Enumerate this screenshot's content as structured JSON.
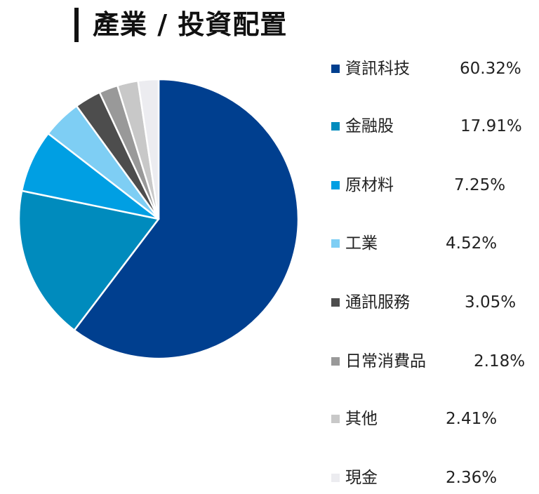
{
  "title": "產業 / 投資配置",
  "chart_data": {
    "type": "pie",
    "title": "產業 / 投資配置",
    "start_angle": "12 o'clock",
    "direction": "clockwise",
    "legend_position": "right",
    "categories": [
      "資訊科技",
      "金融股",
      "原材料",
      "工業",
      "通訊服務",
      "日常消費品",
      "其他",
      "現金"
    ],
    "values": [
      60.32,
      17.91,
      7.25,
      4.52,
      3.05,
      2.18,
      2.41,
      2.36
    ],
    "unit": "%",
    "colors": [
      "#003f8f",
      "#008bbd",
      "#009fe3",
      "#7ecef4",
      "#4d4d4d",
      "#999999",
      "#c8c8c8",
      "#ececf0"
    ]
  },
  "legend": {
    "items": [
      {
        "label": "資訊科技",
        "value": "60.32%",
        "color": "#003f8f"
      },
      {
        "label": "金融股",
        "value": "17.91%",
        "color": "#008bbd"
      },
      {
        "label": "原材料",
        "value": "7.25%",
        "color": "#009fe3"
      },
      {
        "label": "工業",
        "value": "4.52%",
        "color": "#7ecef4"
      },
      {
        "label": "通訊服務",
        "value": "3.05%",
        "color": "#4d4d4d"
      },
      {
        "label": "日常消費品",
        "value": "2.18%",
        "color": "#999999"
      },
      {
        "label": "其他",
        "value": "2.41%",
        "color": "#c8c8c8"
      },
      {
        "label": "現金",
        "value": "2.36%",
        "color": "#ececf0"
      }
    ]
  }
}
